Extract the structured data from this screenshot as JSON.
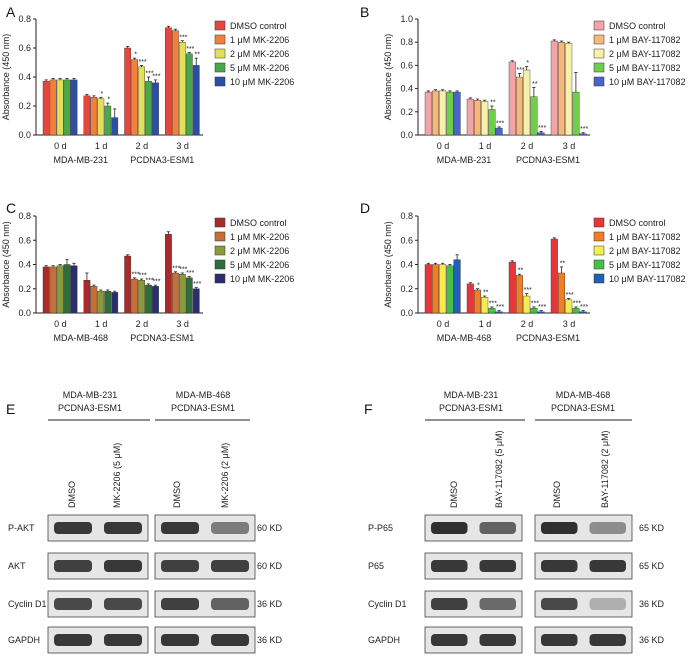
{
  "colors": {
    "A": [
      "#e8453c",
      "#f47f3c",
      "#e0e05a",
      "#4aa84a",
      "#2b4ea8"
    ],
    "B": [
      "#f2a3a8",
      "#f5b87a",
      "#f6f0a8",
      "#6fcf4a",
      "#4a64c8"
    ],
    "C": [
      "#a82a2a",
      "#c86e36",
      "#8a9a3a",
      "#2e6e3a",
      "#2a2e6e"
    ],
    "D": [
      "#e8353a",
      "#f07e28",
      "#f2ee50",
      "#48c048",
      "#2060b8"
    ]
  },
  "chart_data": [
    {
      "panel": "A",
      "type": "bar",
      "ylabel": "Absorbance (450 nm)",
      "ylim": [
        0,
        0.8
      ],
      "yticks": [
        "0.0",
        "0.2",
        "0.4",
        "0.6",
        "0.8"
      ],
      "categories": [
        "0 d",
        "1 d",
        "2 d",
        "3 d"
      ],
      "group_label_1": "MDA-MB-231",
      "group_label_2": "PCDNA3-ESM1",
      "series": [
        {
          "name": "DMSO control",
          "values": [
            0.37,
            0.27,
            0.6,
            0.74
          ],
          "errors": [
            0.01,
            0.01,
            0.01,
            0.01
          ],
          "sig": [
            "",
            "",
            "",
            ""
          ]
        },
        {
          "name": "1 μM MK-2206",
          "values": [
            0.38,
            0.26,
            0.52,
            0.72
          ],
          "errors": [
            0.01,
            0.01,
            0.01,
            0.01
          ],
          "sig": [
            "",
            "",
            "*",
            ""
          ]
        },
        {
          "name": "2 μM MK-2206",
          "values": [
            0.38,
            0.25,
            0.47,
            0.64
          ],
          "errors": [
            0.01,
            0.01,
            0.01,
            0.01
          ],
          "sig": [
            "",
            "*",
            "***",
            "***"
          ]
        },
        {
          "name": "5 μM MK-2206",
          "values": [
            0.38,
            0.2,
            0.37,
            0.56
          ],
          "errors": [
            0.01,
            0.02,
            0.03,
            0.01
          ],
          "sig": [
            "",
            "*",
            "***",
            "***"
          ]
        },
        {
          "name": "10 μM MK-2206",
          "values": [
            0.38,
            0.12,
            0.36,
            0.48
          ],
          "errors": [
            0.01,
            0.06,
            0.02,
            0.05
          ],
          "sig": [
            "",
            "",
            "***",
            "**"
          ]
        }
      ]
    },
    {
      "panel": "B",
      "type": "bar",
      "ylabel": "Absorbance (450 nm)",
      "ylim": [
        0,
        1.0
      ],
      "yticks": [
        "0.0",
        "0.2",
        "0.4",
        "0.6",
        "0.8",
        "1.0"
      ],
      "categories": [
        "0 d",
        "1 d",
        "2 d",
        "3 d"
      ],
      "group_label_1": "MDA-MB-231",
      "group_label_2": "PCDNA3-ESM1",
      "series": [
        {
          "name": "DMSO control",
          "values": [
            0.37,
            0.31,
            0.63,
            0.81
          ],
          "errors": [
            0.01,
            0.01,
            0.01,
            0.01
          ],
          "sig": [
            "",
            "",
            "",
            ""
          ]
        },
        {
          "name": "1 μM BAY-117082",
          "values": [
            0.38,
            0.3,
            0.5,
            0.8
          ],
          "errors": [
            0.01,
            0.01,
            0.03,
            0.01
          ],
          "sig": [
            "",
            "",
            "***",
            ""
          ]
        },
        {
          "name": "2 μM BAY-117082",
          "values": [
            0.38,
            0.29,
            0.56,
            0.79
          ],
          "errors": [
            0.01,
            0.01,
            0.03,
            0.01
          ],
          "sig": [
            "",
            "",
            "*",
            ""
          ]
        },
        {
          "name": "5 μM BAY-117082",
          "values": [
            0.37,
            0.22,
            0.33,
            0.37
          ],
          "errors": [
            0.01,
            0.03,
            0.08,
            0.17
          ],
          "sig": [
            "",
            "**",
            "**",
            ""
          ]
        },
        {
          "name": "10 μM BAY-117082",
          "values": [
            0.37,
            0.06,
            0.02,
            0.01
          ],
          "errors": [
            0.01,
            0.01,
            0.01,
            0.01
          ],
          "sig": [
            "",
            "***",
            "***",
            "***"
          ]
        }
      ]
    },
    {
      "panel": "C",
      "type": "bar",
      "ylabel": "Absorbance (450 nm)",
      "ylim": [
        0,
        0.8
      ],
      "yticks": [
        "0.0",
        "0.2",
        "0.4",
        "0.6",
        "0.8"
      ],
      "categories": [
        "0 d",
        "1 d",
        "2 d",
        "3 d"
      ],
      "group_label_1": "MDA-MB-468",
      "group_label_2": "PCDNA3-ESM1",
      "series": [
        {
          "name": "DMSO control",
          "values": [
            0.38,
            0.27,
            0.47,
            0.65
          ],
          "errors": [
            0.01,
            0.06,
            0.01,
            0.02
          ],
          "sig": [
            "",
            "",
            "",
            ""
          ]
        },
        {
          "name": "1 μM MK-2206",
          "values": [
            0.38,
            0.22,
            0.28,
            0.33
          ],
          "errors": [
            0.01,
            0.01,
            0.01,
            0.01
          ],
          "sig": [
            "",
            "",
            "***",
            "***"
          ]
        },
        {
          "name": "2 μM MK-2206",
          "values": [
            0.39,
            0.18,
            0.27,
            0.32
          ],
          "errors": [
            0.01,
            0.01,
            0.01,
            0.01
          ],
          "sig": [
            "",
            "",
            "***",
            "***"
          ]
        },
        {
          "name": "5 μM MK-2206",
          "values": [
            0.4,
            0.18,
            0.23,
            0.29
          ],
          "errors": [
            0.04,
            0.01,
            0.01,
            0.01
          ],
          "sig": [
            "",
            "",
            "***",
            "***"
          ]
        },
        {
          "name": "10 μM MK-2206",
          "values": [
            0.39,
            0.17,
            0.22,
            0.2
          ],
          "errors": [
            0.02,
            0.01,
            0.01,
            0.01
          ],
          "sig": [
            "",
            "",
            "***",
            "***"
          ]
        }
      ]
    },
    {
      "panel": "D",
      "type": "bar",
      "ylabel": "Absorbance (450 nm)",
      "ylim": [
        0,
        0.8
      ],
      "yticks": [
        "0.0",
        "0.2",
        "0.4",
        "0.6",
        "0.8"
      ],
      "categories": [
        "0 d",
        "1 d",
        "2 d",
        "3 d"
      ],
      "group_label_1": "MDA-MB-468",
      "group_label_2": "PCDNA3-ESM1",
      "series": [
        {
          "name": "DMSO control",
          "values": [
            0.4,
            0.24,
            0.42,
            0.61
          ],
          "errors": [
            0.01,
            0.01,
            0.01,
            0.01
          ],
          "sig": [
            "",
            "",
            "",
            ""
          ]
        },
        {
          "name": "1 μM BAY-117082",
          "values": [
            0.4,
            0.19,
            0.31,
            0.33
          ],
          "errors": [
            0.01,
            0.01,
            0.01,
            0.05
          ],
          "sig": [
            "",
            "*",
            "**",
            "**"
          ]
        },
        {
          "name": "2 μM BAY-117082",
          "values": [
            0.4,
            0.13,
            0.14,
            0.11
          ],
          "errors": [
            0.01,
            0.01,
            0.02,
            0.01
          ],
          "sig": [
            "",
            "**",
            "***",
            "***"
          ]
        },
        {
          "name": "5 μM BAY-117082",
          "values": [
            0.39,
            0.04,
            0.04,
            0.04
          ],
          "errors": [
            0.01,
            0.01,
            0.01,
            0.01
          ],
          "sig": [
            "",
            "***",
            "***",
            "***"
          ]
        },
        {
          "name": "10 μM BAY-117082",
          "values": [
            0.44,
            0.01,
            0.01,
            0.01
          ],
          "errors": [
            0.04,
            0.01,
            0.01,
            0.01
          ],
          "sig": [
            "",
            "***",
            "***",
            "***"
          ]
        }
      ]
    }
  ],
  "blots": {
    "E": {
      "letter": "E",
      "group1_line1": "MDA-MB-231",
      "group1_line2": "PCDNA3-ESM1",
      "group2_line1": "MDA-MB-468",
      "group2_line2": "PCDNA3-ESM1",
      "lane_labels": [
        "DMSO",
        "MK-2206 (5 μM)",
        "DMSO",
        "MK-2206 (2 μM)"
      ],
      "rows": [
        {
          "protein": "P-AKT",
          "size": "60 KD"
        },
        {
          "protein": "AKT",
          "size": "60 KD"
        },
        {
          "protein": "Cyclin D1",
          "size": "36 KD"
        },
        {
          "protein": "GAPDH",
          "size": "36 KD"
        }
      ]
    },
    "F": {
      "letter": "F",
      "group1_line1": "MDA-MB-231",
      "group1_line2": "PCDNA3-ESM1",
      "group2_line1": "MDA-MB-468",
      "group2_line2": "PCDNA3-ESM1",
      "lane_labels": [
        "DMSO",
        "BAY-117082 (5 μM)",
        "DMSO",
        "BAY-117082 (2 μM)"
      ],
      "rows": [
        {
          "protein": "P-P65",
          "size": "65 KD"
        },
        {
          "protein": "P65",
          "size": "65 KD"
        },
        {
          "protein": "Cyclin D1",
          "size": "36 KD"
        },
        {
          "protein": "GAPDH",
          "size": "36 KD"
        }
      ]
    }
  }
}
